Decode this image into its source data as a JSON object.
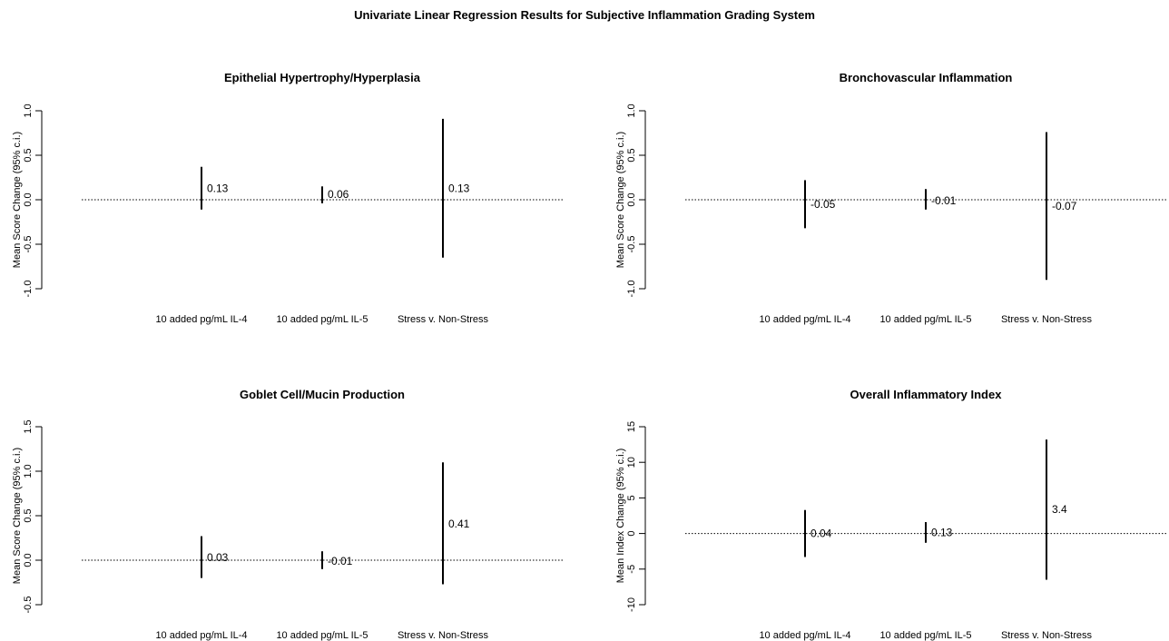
{
  "figure": {
    "title": "Univariate Linear Regression Results for Subjective Inflammation Grading System"
  },
  "chart_data": [
    {
      "type": "errorbar",
      "title": "Epithelial Hypertrophy/Hyperplasia",
      "ylabel": "Mean Score Change (95% c.i.)",
      "xlabel": "",
      "categories": [
        "10 added pg/mL IL-4",
        "10 added pg/mL IL-5",
        "Stress v. Non-Stress"
      ],
      "estimates": [
        0.13,
        0.06,
        0.13
      ],
      "estimate_labels": [
        "0.13",
        "0.06",
        "0.13"
      ],
      "ci_lower": [
        -0.11,
        -0.04,
        -0.65
      ],
      "ci_upper": [
        0.37,
        0.15,
        0.91
      ],
      "yticks": [
        -1.0,
        -0.5,
        0.0,
        0.5,
        1.0
      ],
      "ytick_labels": [
        "-1.0",
        "-0.5",
        "0.0",
        "0.5",
        "1.0"
      ],
      "ylim": [
        -1.0,
        1.0
      ],
      "reference_line": 0,
      "grid": false,
      "legend": "none"
    },
    {
      "type": "errorbar",
      "title": "Bronchovascular Inflammation",
      "ylabel": "Mean Score Change (95% c.i.)",
      "xlabel": "",
      "categories": [
        "10 added pg/mL IL-4",
        "10 added pg/mL IL-5",
        "Stress v. Non-Stress"
      ],
      "estimates": [
        -0.05,
        -0.01,
        -0.07
      ],
      "estimate_labels": [
        "-0.05",
        "-0.01",
        "-0.07"
      ],
      "ci_lower": [
        -0.32,
        -0.11,
        -0.9
      ],
      "ci_upper": [
        0.22,
        0.12,
        0.76
      ],
      "yticks": [
        -1.0,
        -0.5,
        0.0,
        0.5,
        1.0
      ],
      "ytick_labels": [
        "-1.0",
        "-0.5",
        "0.0",
        "0.5",
        "1.0"
      ],
      "ylim": [
        -1.0,
        1.0
      ],
      "reference_line": 0,
      "grid": false,
      "legend": "none"
    },
    {
      "type": "errorbar",
      "title": "Goblet Cell/Mucin Production",
      "ylabel": "Mean Score Change (95% c.i.)",
      "xlabel": "",
      "categories": [
        "10 added pg/mL IL-4",
        "10 added pg/mL IL-5",
        "Stress v. Non-Stress"
      ],
      "estimates": [
        0.03,
        -0.01,
        0.41
      ],
      "estimate_labels": [
        "0.03",
        "-0.01",
        "0.41"
      ],
      "ci_lower": [
        -0.2,
        -0.1,
        -0.27
      ],
      "ci_upper": [
        0.27,
        0.1,
        1.1
      ],
      "yticks": [
        -0.5,
        0.0,
        0.5,
        1.0,
        1.5
      ],
      "ytick_labels": [
        "-0.5",
        "0.0",
        "0.5",
        "1.0",
        "1.5"
      ],
      "ylim": [
        -0.5,
        1.5
      ],
      "reference_line": 0,
      "grid": false,
      "legend": "none"
    },
    {
      "type": "errorbar",
      "title": "Overall Inflammatory Index",
      "ylabel": "Mean Index Change (95% c.i.)",
      "xlabel": "",
      "categories": [
        "10 added pg/mL IL-4",
        "10 added pg/mL IL-5",
        "Stress v. Non-Stress"
      ],
      "estimates": [
        0.04,
        0.13,
        3.4
      ],
      "estimate_labels": [
        "0.04",
        "0.13",
        "3.4"
      ],
      "ci_lower": [
        -3.3,
        -1.3,
        -6.5
      ],
      "ci_upper": [
        3.3,
        1.6,
        13.2
      ],
      "yticks": [
        -10,
        -5,
        0,
        5,
        10,
        15
      ],
      "ytick_labels": [
        "-10",
        "-5",
        "0",
        "5",
        "10",
        "15"
      ],
      "ylim": [
        -10,
        15
      ],
      "reference_line": 0,
      "grid": false,
      "legend": "none"
    }
  ]
}
